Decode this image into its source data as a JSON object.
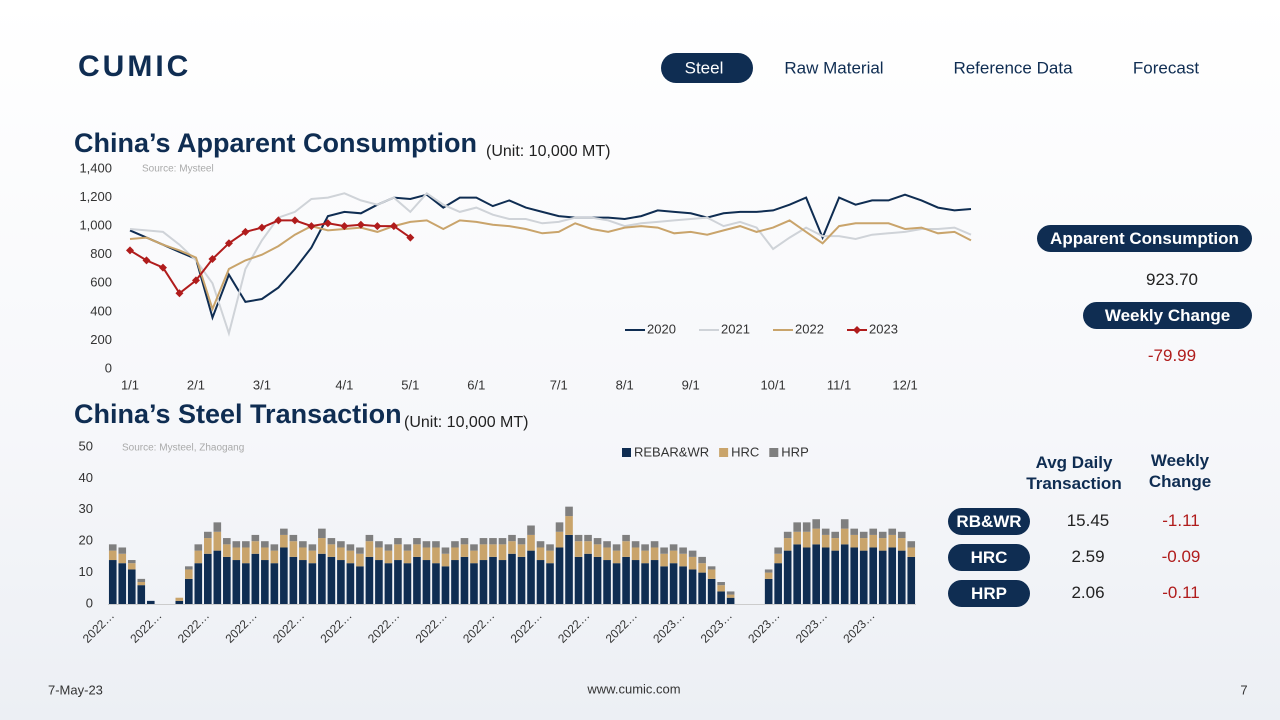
{
  "header": {
    "logo": "CUMIC",
    "nav": [
      "Steel",
      "Raw Material",
      "Reference Data",
      "Forecast"
    ]
  },
  "chart_data": [
    {
      "type": "line",
      "title": "China’s Apparent Consumption",
      "subtitle": "(Unit: 10,000 MT)",
      "source": "Source: Mysteel",
      "grid": false,
      "legend": "bottom-right",
      "categories": [
        "1/1",
        null,
        null,
        null,
        "2/1",
        null,
        null,
        null,
        "3/1",
        null,
        null,
        null,
        null,
        "4/1",
        null,
        null,
        null,
        "5/1",
        null,
        null,
        null,
        "6/1",
        null,
        null,
        null,
        null,
        "7/1",
        null,
        null,
        null,
        "8/1",
        null,
        null,
        null,
        "9/1",
        null,
        null,
        null,
        null,
        "10/1",
        null,
        null,
        null,
        "11/1",
        null,
        null,
        null,
        "12/1",
        null,
        null,
        null,
        null
      ],
      "ylim": [
        0,
        1400
      ],
      "yticks": [
        0,
        200,
        400,
        600,
        800,
        {
          "value": 1000,
          "label": "1,000"
        },
        {
          "value": 1200,
          "label": "1,200"
        },
        {
          "value": 1400,
          "label": "1,400"
        }
      ],
      "series": [
        {
          "name": "2020",
          "color": "#0f2d52",
          "values": [
            970,
            920,
            870,
            820,
            770,
            360,
            660,
            470,
            490,
            570,
            700,
            850,
            1070,
            1100,
            1090,
            1150,
            1200,
            1190,
            1220,
            1130,
            1200,
            1200,
            1140,
            1180,
            1130,
            1100,
            1070,
            1060,
            1060,
            1060,
            1050,
            1070,
            1110,
            1100,
            1090,
            1060,
            1090,
            1100,
            1100,
            1110,
            1150,
            1200,
            920,
            1200,
            1150,
            1180,
            1180,
            1220,
            1180,
            1130,
            1110,
            1120
          ]
        },
        {
          "name": "2021",
          "color": "#cfd3d8",
          "values": [
            980,
            970,
            960,
            870,
            760,
            600,
            250,
            700,
            900,
            1060,
            1100,
            1190,
            1200,
            1230,
            1180,
            1150,
            1200,
            1100,
            1230,
            1150,
            1100,
            1130,
            1080,
            1050,
            1050,
            1020,
            1030,
            1060,
            1060,
            1040,
            1000,
            1020,
            1030,
            1040,
            1050,
            1060,
            1000,
            1030,
            990,
            840,
            920,
            990,
            930,
            930,
            910,
            940,
            950,
            960,
            980,
            980,
            990,
            940
          ]
        },
        {
          "name": "2022",
          "color": "#c9a46b",
          "values": [
            910,
            920,
            870,
            830,
            780,
            420,
            700,
            760,
            800,
            860,
            940,
            1000,
            970,
            980,
            990,
            960,
            1000,
            1030,
            1040,
            980,
            1040,
            1030,
            1010,
            1000,
            980,
            950,
            960,
            1020,
            980,
            960,
            990,
            1000,
            990,
            950,
            960,
            940,
            970,
            1000,
            960,
            990,
            1040,
            960,
            880,
            1000,
            1020,
            1020,
            1020,
            980,
            990,
            950,
            960,
            900
          ]
        },
        {
          "name": "2023",
          "color": "#b01c1c",
          "marker": "diamond",
          "values": [
            830,
            760,
            710,
            530,
            620,
            770,
            880,
            960,
            990,
            1040,
            1040,
            1000,
            1020,
            1000,
            1010,
            1000,
            1000,
            920,
            null,
            null,
            null,
            null,
            null,
            null,
            null,
            null,
            null,
            null,
            null,
            null,
            null,
            null,
            null,
            null,
            null,
            null,
            null,
            null,
            null,
            null,
            null,
            null,
            null,
            null,
            null,
            null,
            null,
            null,
            null,
            null,
            null,
            null
          ]
        }
      ]
    },
    {
      "type": "stacked-bar",
      "title": "China’s Steel Transaction",
      "subtitle": "(Unit: 10,000 MT)",
      "source": "Source: Mysteel, Zhaogang",
      "legend": "top",
      "categories": [
        "2022…",
        null,
        null,
        null,
        null,
        "2022…",
        null,
        null,
        null,
        null,
        "2022…",
        null,
        null,
        null,
        null,
        "2022…",
        null,
        null,
        null,
        null,
        "2022…",
        null,
        null,
        null,
        null,
        "2022…",
        null,
        null,
        null,
        null,
        "2022…",
        null,
        null,
        null,
        null,
        "2022…",
        null,
        null,
        null,
        null,
        "2022…",
        null,
        null,
        null,
        null,
        "2022…",
        null,
        null,
        null,
        null,
        "2022…",
        null,
        null,
        null,
        null,
        "2022…",
        null,
        null,
        null,
        null,
        "2023…",
        null,
        null,
        null,
        null,
        "2023…",
        null,
        null,
        null,
        null,
        "2023…",
        null,
        null,
        null,
        null,
        "2023…",
        null,
        null,
        null,
        null,
        "2023…",
        null,
        null,
        null,
        null
      ],
      "ylim": [
        0,
        50
      ],
      "yticks": [
        0,
        10,
        20,
        30,
        40,
        50
      ],
      "series": [
        {
          "name": "REBAR&WR",
          "color": "#0f2d52",
          "values": [
            14,
            13,
            11,
            6,
            1,
            0,
            0,
            1,
            8,
            13,
            16,
            17,
            15,
            14,
            13,
            16,
            14,
            13,
            18,
            15,
            14,
            13,
            16,
            15,
            14,
            13,
            12,
            15,
            14,
            13,
            14,
            13,
            15,
            14,
            13,
            12,
            14,
            15,
            13,
            14,
            15,
            14,
            16,
            15,
            17,
            14,
            13,
            18,
            22,
            15,
            16,
            15,
            14,
            13,
            15,
            14,
            13,
            14,
            12,
            13,
            12,
            11,
            10,
            8,
            4,
            2,
            0,
            0,
            0,
            8,
            13,
            17,
            19,
            18,
            19,
            18,
            17,
            19,
            18,
            17,
            18,
            17,
            18,
            17,
            15
          ]
        },
        {
          "name": "HRC",
          "color": "#c9a46b",
          "values": [
            3,
            3,
            2,
            1,
            0,
            0,
            0,
            1,
            3,
            4,
            5,
            6,
            4,
            4,
            5,
            4,
            4,
            4,
            4,
            5,
            4,
            4,
            5,
            4,
            4,
            4,
            4,
            5,
            4,
            4,
            5,
            4,
            4,
            4,
            5,
            4,
            4,
            4,
            4,
            5,
            4,
            5,
            4,
            4,
            5,
            4,
            4,
            5,
            6,
            5,
            4,
            4,
            4,
            4,
            5,
            4,
            4,
            4,
            4,
            4,
            4,
            4,
            3,
            3,
            2,
            1,
            0,
            0,
            0,
            2,
            3,
            4,
            4,
            5,
            5,
            4,
            4,
            5,
            4,
            4,
            4,
            4,
            4,
            4,
            3
          ]
        },
        {
          "name": "HRP",
          "color": "#7f7f7f",
          "values": [
            2,
            2,
            1,
            1,
            0,
            0,
            0,
            0,
            1,
            2,
            2,
            3,
            2,
            2,
            2,
            2,
            2,
            2,
            2,
            2,
            2,
            2,
            3,
            2,
            2,
            2,
            2,
            2,
            2,
            2,
            2,
            2,
            2,
            2,
            2,
            2,
            2,
            2,
            2,
            2,
            2,
            2,
            2,
            2,
            3,
            2,
            2,
            3,
            3,
            2,
            2,
            2,
            2,
            2,
            2,
            2,
            2,
            2,
            2,
            2,
            2,
            2,
            2,
            1,
            1,
            1,
            0,
            0,
            0,
            1,
            2,
            2,
            3,
            3,
            3,
            2,
            2,
            3,
            2,
            2,
            2,
            2,
            2,
            2,
            2
          ]
        }
      ]
    }
  ],
  "consumption_panel": {
    "label": "Apparent Consumption",
    "value": "923.70",
    "change_label": "Weekly Change",
    "change": "-79.99"
  },
  "transaction_table": {
    "headers": [
      "Avg Daily Transaction",
      "Weekly Change"
    ],
    "rows": [
      [
        "RB&WR",
        "15.45",
        "-1.11"
      ],
      [
        "HRC",
        "2.59",
        "-0.09"
      ],
      [
        "HRP",
        "2.06",
        "-0.11"
      ]
    ]
  },
  "footer": {
    "date": "7-May-23",
    "url": "www.cumic.com",
    "page": "7"
  }
}
